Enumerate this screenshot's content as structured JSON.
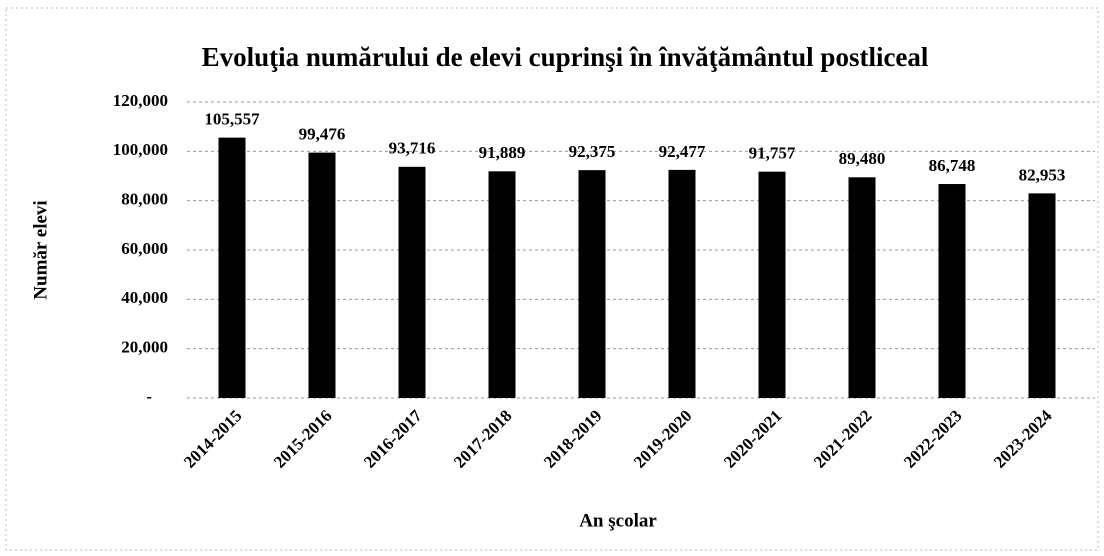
{
  "chart_data": {
    "type": "bar",
    "title": "Evoluţia numărului de elevi cuprinşi în învăţământul postliceal",
    "x_label": "An şcolar",
    "y_label": "Număr elevi",
    "categories": [
      "2014-2015",
      "2015-2016",
      "2016-2017",
      "2017-2018",
      "2018-2019",
      "2019-2020",
      "2020-2021",
      "2021-2022",
      "2022-2023",
      "2023-2024"
    ],
    "values": [
      105557,
      99476,
      93716,
      91889,
      92375,
      92477,
      91757,
      89480,
      86748,
      82953
    ],
    "value_labels": [
      "105,557",
      "99,476",
      "93,716",
      "91,889",
      "92,375",
      "92,477",
      "91,757",
      "89,480",
      "86,748",
      "82,953"
    ],
    "color": "#000000",
    "ylim": [
      0,
      120000
    ],
    "yticks": [
      {
        "value": 0,
        "label": "-"
      },
      {
        "value": 20000,
        "label": "20,000"
      },
      {
        "value": 40000,
        "label": "40,000"
      },
      {
        "value": 60000,
        "label": "60,000"
      },
      {
        "value": 80000,
        "label": "80,000"
      },
      {
        "value": 100000,
        "label": "100,000"
      },
      {
        "value": 120000,
        "label": "120,000"
      }
    ],
    "grid": true
  }
}
